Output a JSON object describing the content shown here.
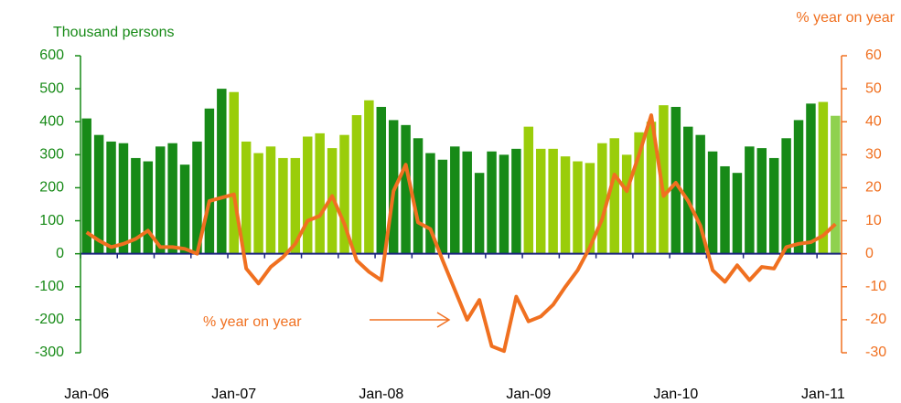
{
  "chart_data": {
    "type": "bar_line",
    "y_title": "Thousand persons",
    "y2_title": "% year on year",
    "annotation": "% year on year",
    "categories": [
      "Jan-06",
      null,
      null,
      null,
      null,
      null,
      null,
      null,
      null,
      null,
      null,
      null,
      "Jan-07",
      null,
      null,
      null,
      null,
      null,
      null,
      null,
      null,
      null,
      null,
      null,
      "Jan-08",
      null,
      null,
      null,
      null,
      null,
      null,
      null,
      null,
      null,
      null,
      null,
      "Jan-09",
      null,
      null,
      null,
      null,
      null,
      null,
      null,
      null,
      null,
      null,
      null,
      "Jan-10",
      null,
      null,
      null,
      null,
      null,
      null,
      null,
      null,
      null,
      null,
      null,
      "Jan-11",
      null
    ],
    "series": [
      {
        "name": "Thousand persons",
        "type": "bar",
        "values": [
          410,
          360,
          340,
          335,
          290,
          280,
          325,
          335,
          270,
          340,
          440,
          500,
          490,
          340,
          305,
          325,
          290,
          290,
          355,
          365,
          320,
          360,
          420,
          465,
          445,
          405,
          390,
          350,
          305,
          285,
          325,
          310,
          245,
          310,
          300,
          318,
          385,
          318,
          318,
          295,
          280,
          275,
          335,
          350,
          300,
          368,
          400,
          450,
          445,
          385,
          360,
          310,
          265,
          245,
          325,
          320,
          290,
          350,
          405,
          455,
          460,
          418
        ],
        "colors": [
          "#178a17",
          "#178a17",
          "#178a17",
          "#178a17",
          "#178a17",
          "#178a17",
          "#178a17",
          "#178a17",
          "#178a17",
          "#178a17",
          "#178a17",
          "#178a17",
          "#9acd0a",
          "#9acd0a",
          "#9acd0a",
          "#9acd0a",
          "#9acd0a",
          "#9acd0a",
          "#9acd0a",
          "#9acd0a",
          "#9acd0a",
          "#9acd0a",
          "#9acd0a",
          "#9acd0a",
          "#178a17",
          "#178a17",
          "#178a17",
          "#178a17",
          "#178a17",
          "#178a17",
          "#178a17",
          "#178a17",
          "#178a17",
          "#178a17",
          "#178a17",
          "#178a17",
          "#9acd0a",
          "#9acd0a",
          "#9acd0a",
          "#9acd0a",
          "#9acd0a",
          "#9acd0a",
          "#9acd0a",
          "#9acd0a",
          "#9acd0a",
          "#9acd0a",
          "#9acd0a",
          "#9acd0a",
          "#178a17",
          "#178a17",
          "#178a17",
          "#178a17",
          "#178a17",
          "#178a17",
          "#178a17",
          "#178a17",
          "#178a17",
          "#178a17",
          "#178a17",
          "#178a17",
          "#9acd0a",
          "#8fd14f"
        ]
      },
      {
        "name": "% year on year",
        "type": "line",
        "axis": "y2",
        "color": "#f07020",
        "values": [
          6.5,
          4,
          2,
          3,
          4.5,
          7,
          2,
          2,
          1.5,
          0,
          16,
          17,
          18,
          -4.5,
          -9,
          -4,
          -1,
          3,
          10,
          11.5,
          17.5,
          9,
          -2,
          -5.5,
          -8,
          19,
          27,
          9.5,
          7.5,
          -2,
          -11,
          -20,
          -14,
          -28,
          -29.5,
          -13,
          -20.5,
          -19,
          -15.5,
          -10,
          -5,
          2,
          10.5,
          24,
          19,
          30,
          42,
          17.5,
          21.5,
          16,
          8.5,
          -5,
          -8.5,
          -3.5,
          -8,
          -4,
          -4.5,
          2,
          3,
          3.5,
          5.5,
          9
        ]
      }
    ],
    "ylim": [
      -300,
      600
    ],
    "yticks": [
      -300,
      -200,
      -100,
      0,
      100,
      200,
      300,
      400,
      500,
      600
    ],
    "y2lim": [
      -30,
      60
    ],
    "y2ticks": [
      -30,
      -20,
      -10,
      0,
      10,
      20,
      30,
      40,
      50,
      60
    ],
    "y_color": "#178a17",
    "y2_color": "#f07020",
    "zero_line_color": "#1a237e"
  }
}
